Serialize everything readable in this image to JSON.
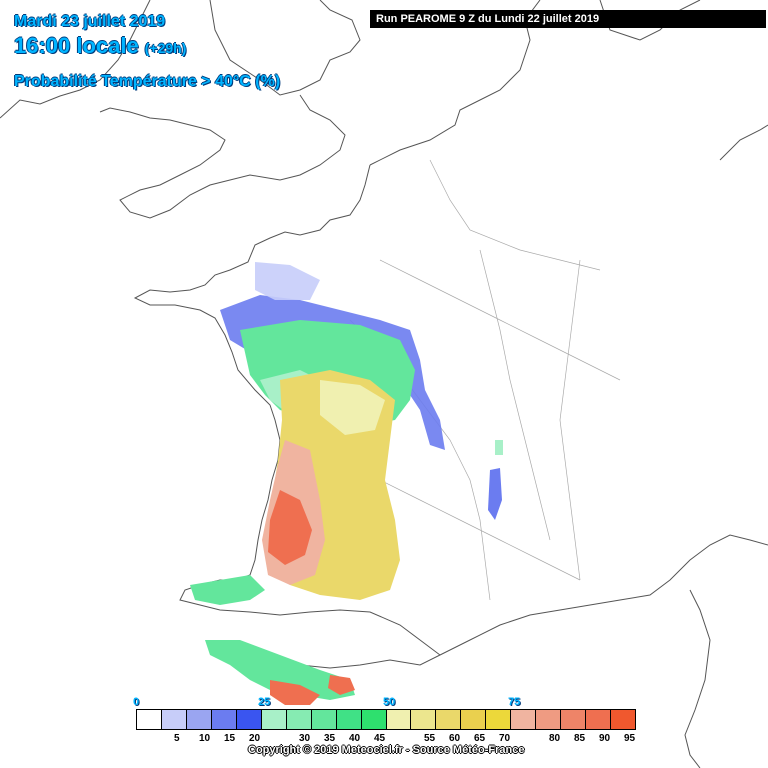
{
  "header": {
    "date": "Mardi 23 juillet 2019",
    "time": "16:00 locale",
    "step": "(+29h)",
    "parameter": "Probabilité Température > 40°C (%)"
  },
  "run_info": "Run PEAROME 9 Z du Lundi 22 juillet 2019",
  "legend": {
    "major_ticks": [
      "0",
      "25",
      "50",
      "75"
    ],
    "minor_ticks": [
      "5",
      "10",
      "15",
      "20",
      "30",
      "35",
      "40",
      "45",
      "55",
      "60",
      "65",
      "70",
      "80",
      "85",
      "90",
      "95"
    ],
    "colors": [
      "#ffffff",
      "#c7cdf9",
      "#9aa5f1",
      "#6b7cf0",
      "#3a55f0",
      "#a8f0c8",
      "#86ebb2",
      "#63e69c",
      "#40e186",
      "#2ee06e",
      "#f0f0b0",
      "#ece68e",
      "#ead86a",
      "#ead04e",
      "#ecd83a",
      "#f0b4a0",
      "#ef9b82",
      "#ee8468",
      "#ef6f50",
      "#f0582e"
    ]
  },
  "copyright": "Copyright © 2019 Meteociel.fr - Source Météo-France",
  "map_colors": {
    "coast": "#555555",
    "border": "#888888",
    "blue": "#6b7cf0",
    "lightblue": "#c7cdf9",
    "green": "#63e69c",
    "lightgreen": "#a8f0c8",
    "yellow": "#ead86a",
    "lightyellow": "#f0f0b0",
    "orange": "#f0b4a0",
    "red": "#ef6f50"
  }
}
